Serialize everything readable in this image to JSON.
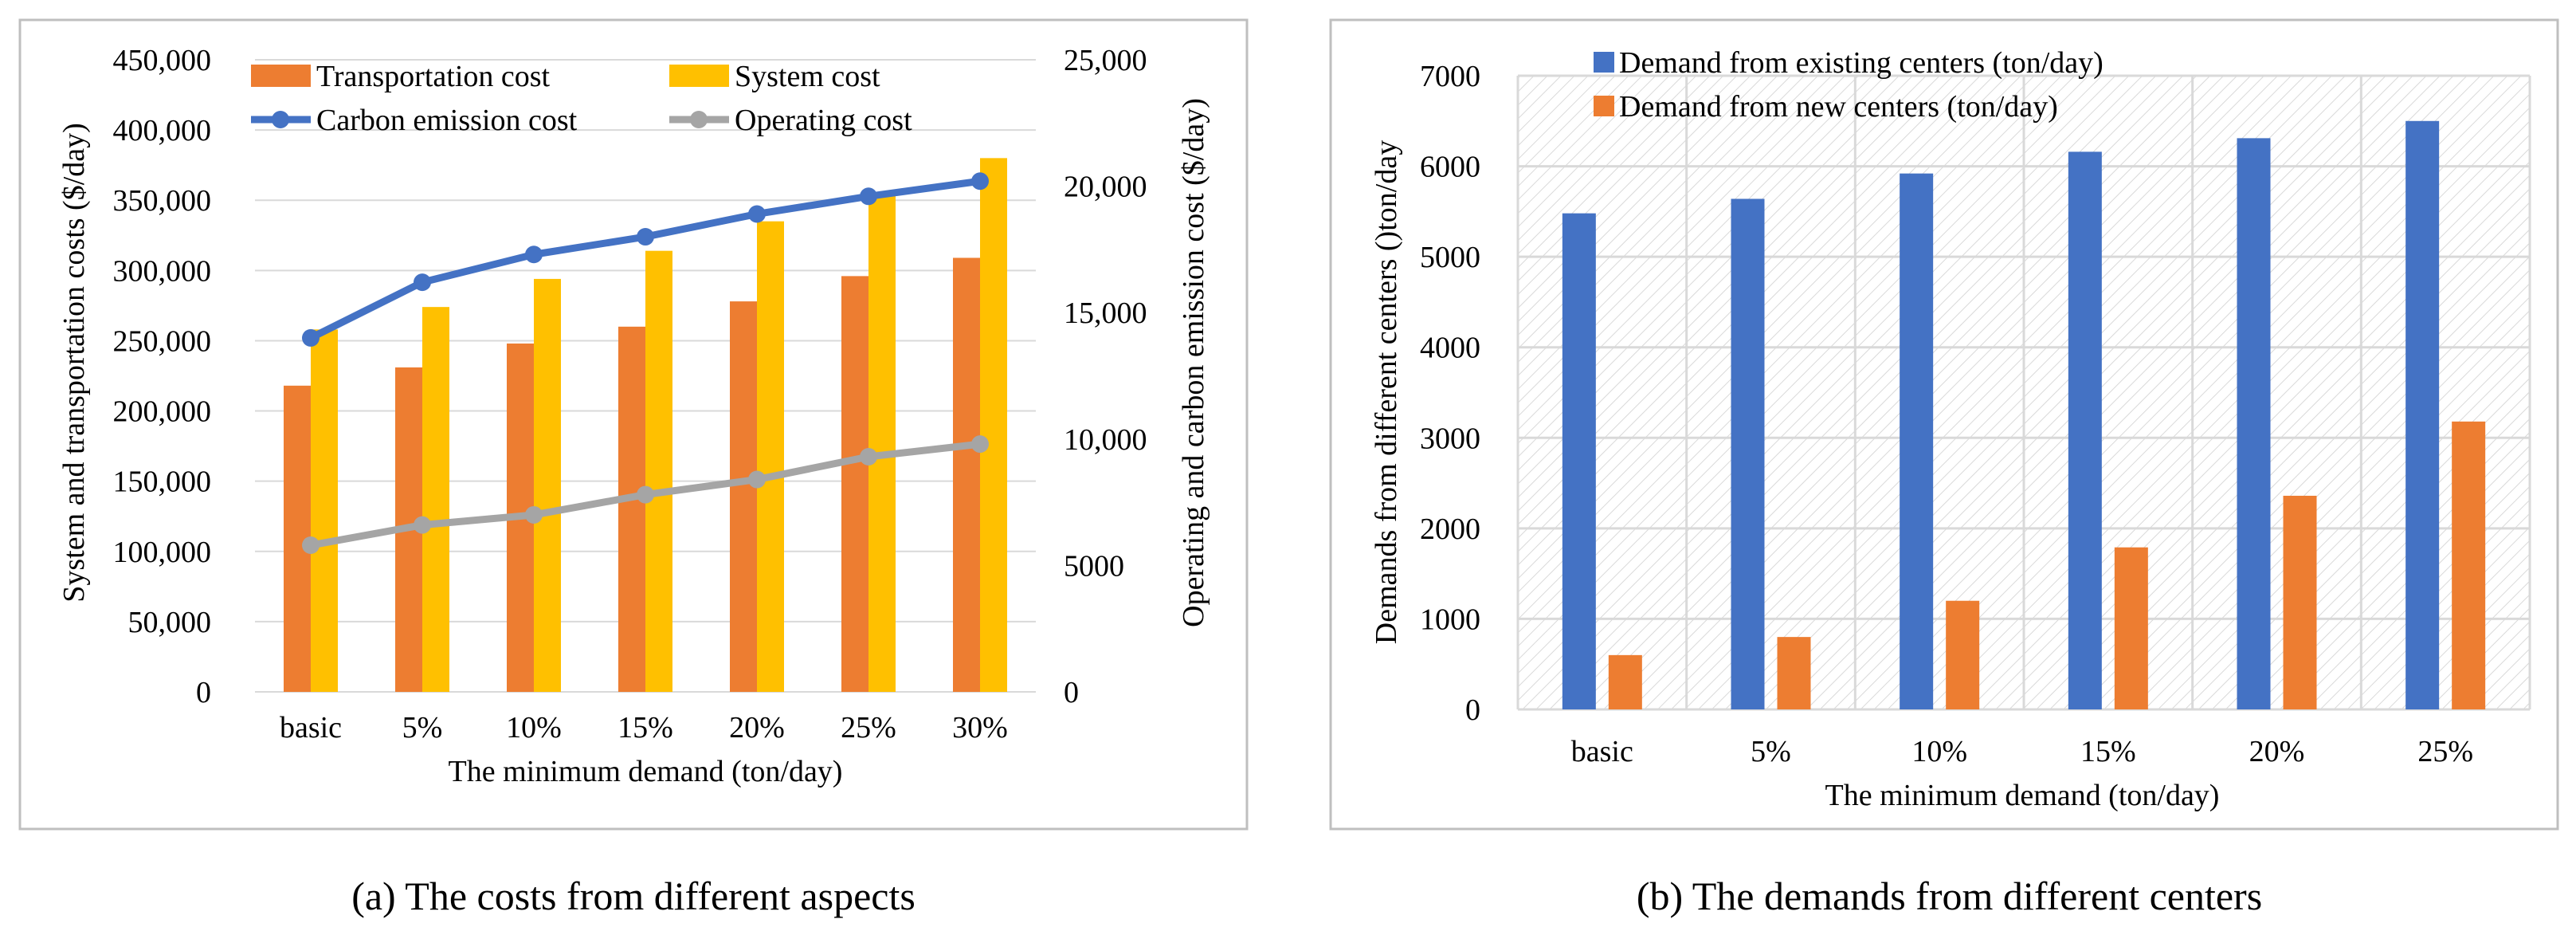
{
  "chart_data": [
    {
      "type": "bar+line",
      "xlabel": "The minimum demand (ton/day)",
      "ylabel": "System and transportation costs ($/day)",
      "y2label": "Operating and carbon emission cost ($/day)",
      "categories": [
        "basic",
        "5%",
        "10%",
        "15%",
        "20%",
        "25%",
        "30%"
      ],
      "ylim": [
        0,
        450000
      ],
      "y2lim": [
        0,
        25000
      ],
      "yticks": [
        "0",
        "50,000",
        "100,000",
        "150,000",
        "200,000",
        "250,000",
        "300,000",
        "350,000",
        "400,000",
        "450,000"
      ],
      "y2ticks": [
        "0",
        "5000",
        "10,000",
        "15,000",
        "20,000",
        "25,000"
      ],
      "bar_series": [
        {
          "name": "Transportation cost",
          "color": "#ED7D31",
          "values": [
            218000,
            231000,
            248000,
            260000,
            278000,
            296000,
            309000
          ]
        },
        {
          "name": "System cost",
          "color": "#FFC000",
          "values": [
            258000,
            274000,
            294000,
            314000,
            335000,
            355000,
            380000
          ]
        }
      ],
      "line_series": [
        {
          "name": "Carbon emission cost",
          "color": "#4472C4",
          "axis": "right",
          "values": [
            14000,
            16200,
            17300,
            18000,
            18900,
            19600,
            20200
          ]
        },
        {
          "name": "Operating cost",
          "color": "#A5A5A5",
          "axis": "right",
          "values": [
            5800,
            6600,
            7000,
            7800,
            8400,
            9300,
            9800
          ]
        }
      ],
      "legend": [
        "Transportation cost",
        "System cost",
        "Carbon emission cost",
        "Operating cost"
      ]
    },
    {
      "type": "bar",
      "xlabel": "The minimum demand (ton/day)",
      "ylabel": "Demands from different centers ()ton/day",
      "categories": [
        "basic",
        "5%",
        "10%",
        "15%",
        "20%",
        "25%"
      ],
      "ylim": [
        0,
        7000
      ],
      "yticks": [
        "0",
        "1000",
        "2000",
        "3000",
        "4000",
        "5000",
        "6000",
        "7000"
      ],
      "series": [
        {
          "name": "Demand from existing  centers (ton/day)",
          "color": "#4472C4",
          "values": [
            5480,
            5640,
            5920,
            6160,
            6310,
            6500
          ]
        },
        {
          "name": "Demand from new  centers (ton/day)",
          "color": "#ED7D31",
          "values": [
            600,
            800,
            1200,
            1790,
            2360,
            3180
          ]
        }
      ]
    }
  ],
  "captions": {
    "a": "(a) The costs from different aspects",
    "b": "(b) The demands from different centers"
  }
}
